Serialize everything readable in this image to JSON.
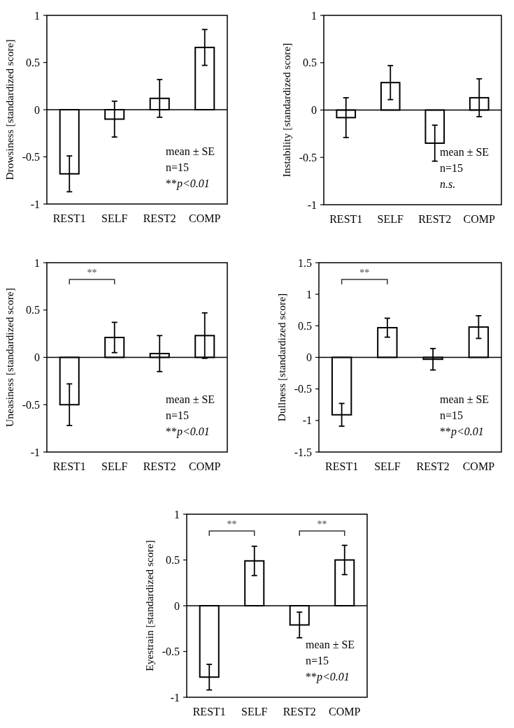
{
  "chart_data": [
    {
      "type": "bar",
      "ylabel": "Drowsiness [standardized score]",
      "categories": [
        "REST1",
        "SELF",
        "REST2",
        "COMP"
      ],
      "values": [
        -0.68,
        -0.1,
        0.12,
        0.66
      ],
      "errors": [
        0.19,
        0.19,
        0.2,
        0.19
      ],
      "color": "#ffffff",
      "ylim": [
        -1,
        1
      ],
      "yticks": [
        -1,
        -0.5,
        0,
        0.5,
        1
      ],
      "annotations": [
        "mean ± SE",
        "n=15",
        "**p<0.01"
      ]
    },
    {
      "type": "bar",
      "ylabel": "Instability [standardized score]",
      "categories": [
        "REST1",
        "SELF",
        "REST2",
        "COMP"
      ],
      "values": [
        -0.08,
        0.29,
        -0.35,
        0.13
      ],
      "errors": [
        0.21,
        0.18,
        0.19,
        0.2
      ],
      "color": "#ffffff",
      "ylim": [
        -1,
        1
      ],
      "yticks": [
        -1,
        -0.5,
        0,
        0.5,
        1
      ],
      "annotations": [
        "mean ± SE",
        "n=15",
        "n.s."
      ]
    },
    {
      "type": "bar",
      "ylabel": "Uneasiness [standardized score]",
      "categories": [
        "REST1",
        "SELF",
        "REST2",
        "COMP"
      ],
      "values": [
        -0.5,
        0.21,
        0.04,
        0.23
      ],
      "errors": [
        0.22,
        0.16,
        0.19,
        0.24
      ],
      "color": "#ffffff",
      "ylim": [
        -1,
        1
      ],
      "yticks": [
        -1,
        -0.5,
        0,
        0.5,
        1
      ],
      "annotations": [
        "**",
        "mean ± SE",
        "n=15",
        "**p<0.01"
      ]
    },
    {
      "type": "bar",
      "ylabel": "Dullness [standardized score]",
      "categories": [
        "REST1",
        "SELF",
        "REST2",
        "COMP"
      ],
      "values": [
        -0.91,
        0.47,
        -0.03,
        0.48
      ],
      "errors": [
        0.18,
        0.15,
        0.17,
        0.18
      ],
      "color": "#ffffff",
      "ylim": [
        -1.5,
        1.5
      ],
      "yticks": [
        -1.5,
        -1,
        -0.5,
        0,
        0.5,
        1,
        1.5
      ],
      "annotations": [
        "**",
        "mean ± SE",
        "n=15",
        "**p<0.01"
      ]
    },
    {
      "type": "bar",
      "ylabel": "Eyestrain [standardized score]",
      "categories": [
        "REST1",
        "SELF",
        "REST2",
        "COMP"
      ],
      "values": [
        -0.78,
        0.49,
        -0.21,
        0.5
      ],
      "errors": [
        0.14,
        0.16,
        0.14,
        0.16
      ],
      "color": "#ffffff",
      "ylim": [
        -1,
        1
      ],
      "yticks": [
        -1,
        -0.5,
        0,
        0.5,
        1
      ],
      "annotations": [
        "**",
        "**",
        "mean ± SE",
        "n=15",
        "**p<0.01"
      ]
    }
  ]
}
